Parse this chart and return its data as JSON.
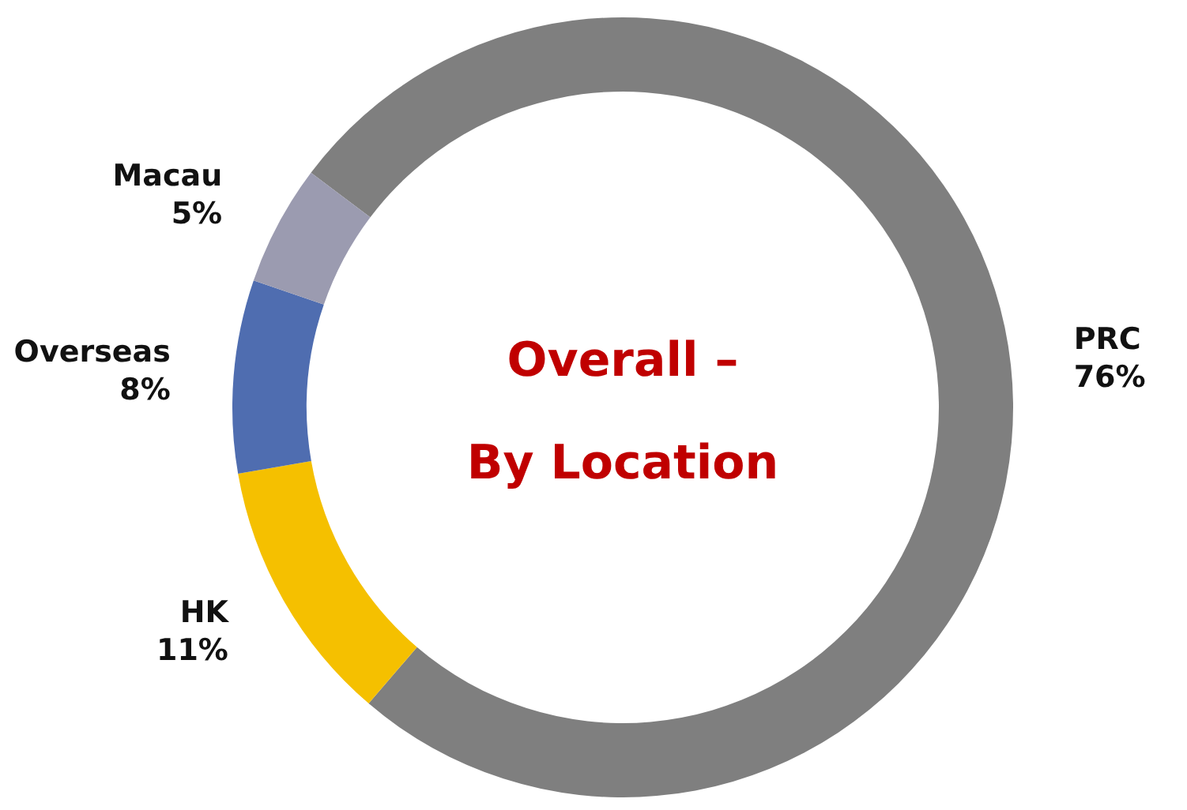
{
  "chart_data": {
    "type": "donut",
    "title": "Overall –",
    "subtitle": "By Location",
    "categories": [
      "PRC",
      "HK",
      "Overseas",
      "Macau"
    ],
    "values": [
      76,
      11,
      8,
      5
    ],
    "value_labels": [
      "76%",
      "11%",
      "8%",
      "5%"
    ],
    "colors": [
      "#7f7f7f",
      "#f5c000",
      "#4f6db0",
      "#9b9bb0"
    ]
  }
}
